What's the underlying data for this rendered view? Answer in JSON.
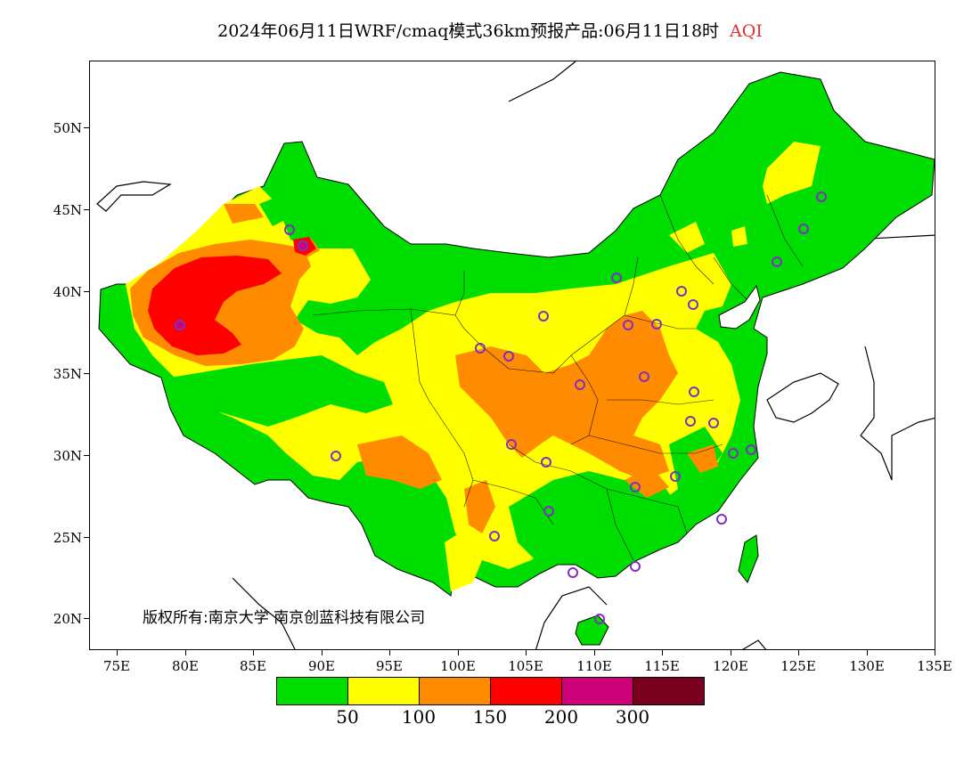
{
  "title": {
    "main": "2024年06月11日WRF/cmaq模式36km预报产品:06月11日18时",
    "variable": "AQI",
    "variable_color": "#e03030"
  },
  "map": {
    "type": "filled-contour-map",
    "region": "China",
    "x_ticks": [
      "75E",
      "80E",
      "85E",
      "90E",
      "95E",
      "100E",
      "105E",
      "110E",
      "115E",
      "120E",
      "125E",
      "130E",
      "135E"
    ],
    "y_ticks": [
      "50N",
      "45N",
      "40N",
      "35N",
      "30N",
      "25N",
      "20N"
    ],
    "lon_range": [
      73,
      135
    ],
    "lat_range": [
      18,
      54
    ],
    "copyright_text": "版权所有:南京大学 南京创蓝科技有限公司",
    "marker_color": "#8030c0"
  },
  "legend": {
    "colors": [
      "#00dd00",
      "#ffff00",
      "#ff8c00",
      "#ff0000",
      "#cc0077",
      "#7a0020"
    ],
    "labels": [
      "50",
      "100",
      "150",
      "200",
      "300"
    ]
  }
}
